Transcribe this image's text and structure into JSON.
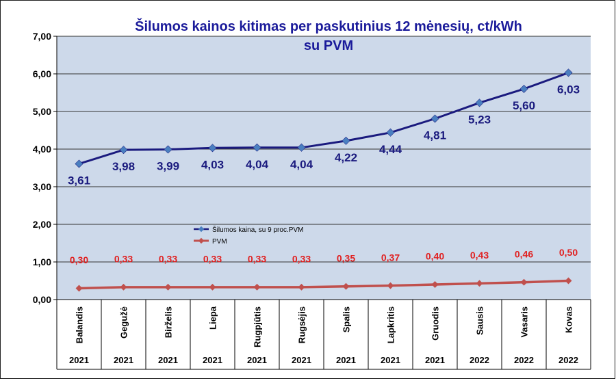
{
  "chart_data": {
    "type": "line",
    "title_line1": "Šilumos kainos kitimas per paskutinius 12 mėnesių, ct/kWh",
    "title_line2": "su PVM",
    "ylim": [
      0,
      7
    ],
    "yticks": [
      "0,00",
      "1,00",
      "2,00",
      "3,00",
      "4,00",
      "5,00",
      "6,00",
      "7,00"
    ],
    "categories": [
      "Balandis",
      "Gegužė",
      "Birželis",
      "Liepa",
      "Rugpjūtis",
      "Rugsėjis",
      "Spalis",
      "Lapkritis",
      "Gruodis",
      "Sausis",
      "Vasaris",
      "Kovas"
    ],
    "years": [
      "2021",
      "2021",
      "2021",
      "2021",
      "2021",
      "2021",
      "2021",
      "2021",
      "2021",
      "2022",
      "2022",
      "2022"
    ],
    "grid": true,
    "legend_position": "center-left",
    "series": [
      {
        "name": "Šilumos kaina, su 9 proc.PVM",
        "color": "#1a1a7e",
        "marker_color": "#4a7fc0",
        "values": [
          3.61,
          3.98,
          3.99,
          4.03,
          4.04,
          4.04,
          4.22,
          4.44,
          4.81,
          5.23,
          5.6,
          6.03
        ],
        "labels": [
          "3,61",
          "3,98",
          "3,99",
          "4,03",
          "4,04",
          "4,04",
          "4,22",
          "4,44",
          "4,81",
          "5,23",
          "5,60",
          "6,03"
        ]
      },
      {
        "name": "PVM",
        "color": "#c0504d",
        "label_color": "#e02020",
        "values": [
          0.3,
          0.33,
          0.33,
          0.33,
          0.33,
          0.33,
          0.35,
          0.37,
          0.4,
          0.43,
          0.46,
          0.5
        ],
        "labels": [
          "0,30",
          "0,33",
          "0,33",
          "0,33",
          "0,33",
          "0,33",
          "0,35",
          "0,37",
          "0,40",
          "0,43",
          "0,46",
          "0,50"
        ]
      }
    ],
    "colors": {
      "plot_background": "#cdd9ea",
      "grid": "#333333"
    }
  }
}
